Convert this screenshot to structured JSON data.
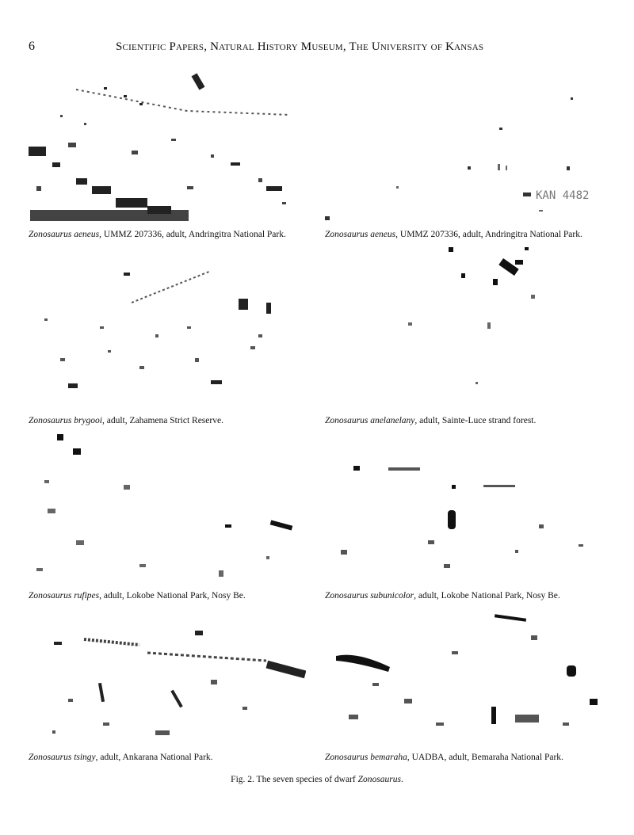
{
  "header": {
    "page_number": "6",
    "running_title": "Scientific Papers, Natural History Museum, The University of Kansas"
  },
  "figures": [
    {
      "species": "Zonosaurus aeneus",
      "rest": ", UMMZ  207336, adult, Andringitra National Park."
    },
    {
      "species": "Zonosaurus aeneus",
      "rest": ", UMMZ  207336, adult, Andringitra National Park.",
      "specimen_tag": "KAN 4482"
    },
    {
      "species": "Zonosaurus brygooi",
      "rest": ", adult, Zahamena Strict Reserve."
    },
    {
      "species": "Zonosaurus anelanelany",
      "rest": ", adult, Sainte-Luce strand forest."
    },
    {
      "species": "Zonosaurus rufipes",
      "rest": ", adult, Lokobe National Park, Nosy Be."
    },
    {
      "species": "Zonosaurus subunicolor",
      "rest": ", adult, Lokobe National Park, Nosy Be."
    },
    {
      "species": "Zonosaurus tsingy",
      "rest": ", adult, Ankarana National Park."
    },
    {
      "species": "Zonosaurus bemaraha",
      "rest": ", UADBA, adult, Bemaraha National Park."
    }
  ],
  "figure_caption": {
    "prefix": "Fig. 2.    The seven species of dwarf ",
    "genus": "Zonosaurus",
    "suffix": "."
  }
}
